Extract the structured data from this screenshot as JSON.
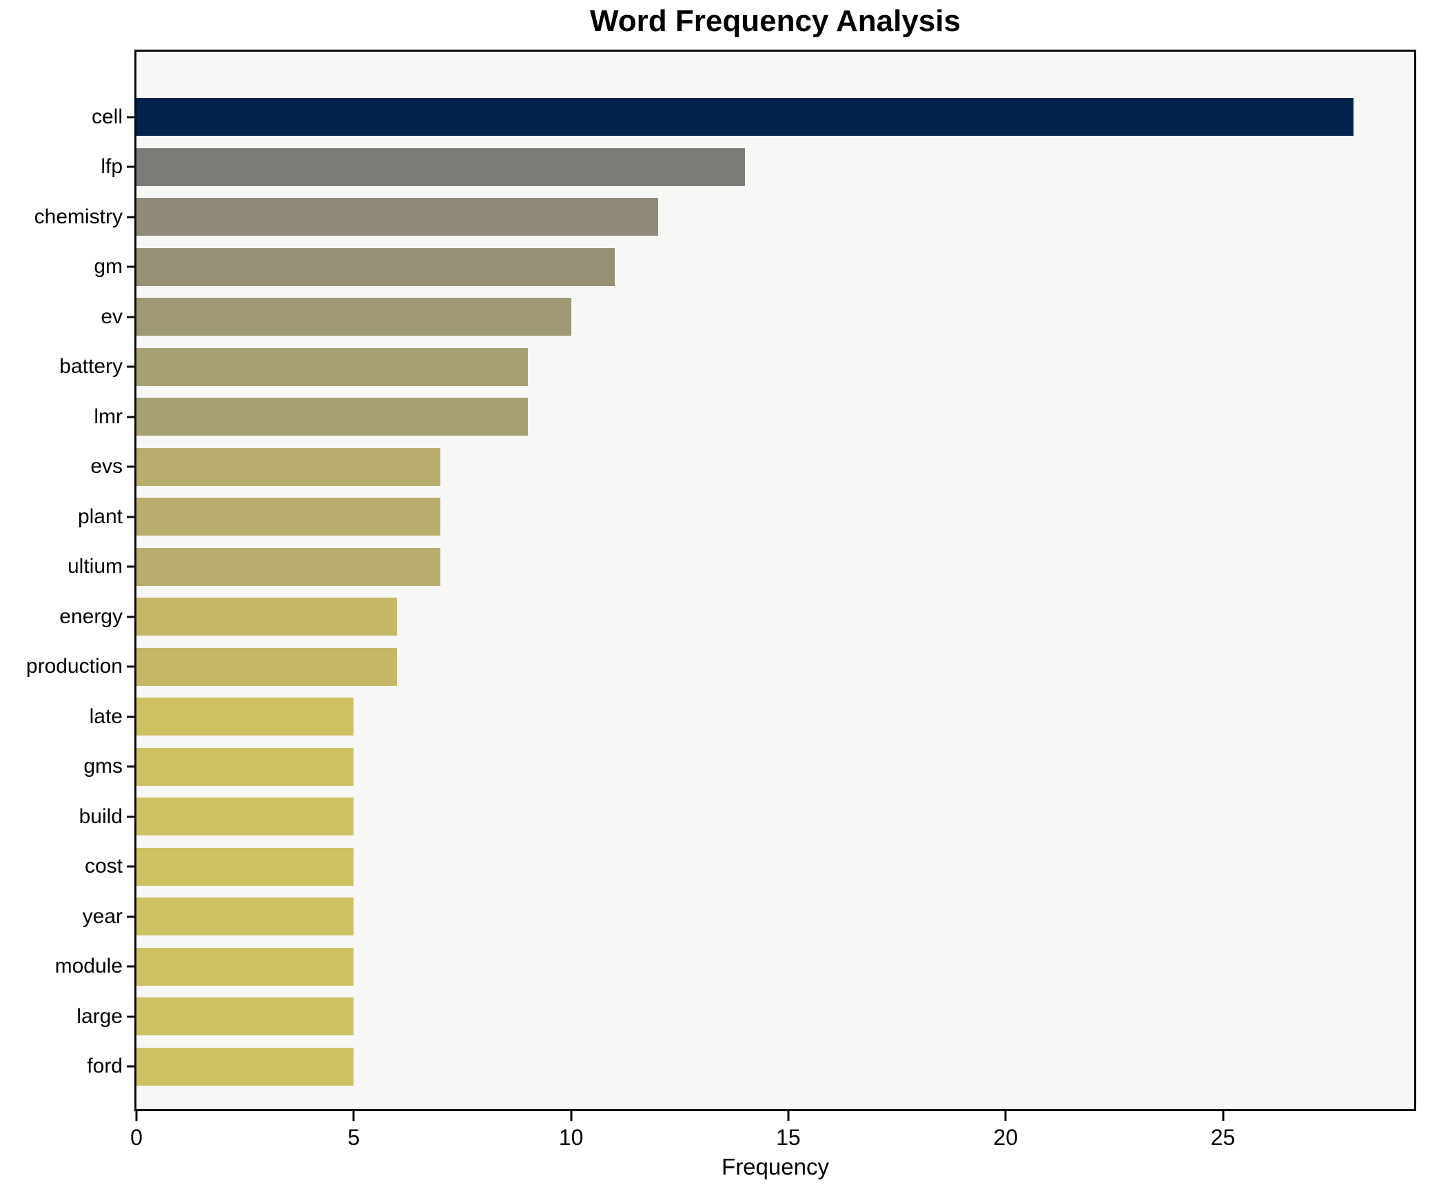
{
  "title": "Word Frequency Analysis",
  "chart_data": {
    "type": "bar",
    "orientation": "horizontal",
    "title": "Word Frequency Analysis",
    "xlabel": "Frequency",
    "ylabel": "",
    "categories": [
      "cell",
      "lfp",
      "chemistry",
      "gm",
      "ev",
      "battery",
      "lmr",
      "evs",
      "plant",
      "ultium",
      "energy",
      "production",
      "late",
      "gms",
      "build",
      "cost",
      "year",
      "module",
      "large",
      "ford"
    ],
    "values": [
      28,
      14,
      12,
      11,
      10,
      9,
      9,
      7,
      7,
      7,
      6,
      6,
      5,
      5,
      5,
      5,
      5,
      5,
      5,
      5
    ],
    "bar_colors": [
      "#03224c",
      "#7b7b77",
      "#8f8a7a",
      "#969174",
      "#9e9974",
      "#a7a073",
      "#a7a073",
      "#b9ad6d",
      "#b9ad6d",
      "#b9ad6d",
      "#c6b766",
      "#c6b766",
      "#cdc162",
      "#cdc162",
      "#cdc162",
      "#cdc162",
      "#cdc162",
      "#cdc162",
      "#cdc162",
      "#cdc162"
    ],
    "xlim": [
      0,
      29.4
    ],
    "x_ticks": [
      0,
      5,
      10,
      15,
      20,
      25
    ],
    "grid": false,
    "legend": "none",
    "plot_background": "#f7f7f5",
    "figure_background": "#ffffff",
    "spine_color": "#0a0a0a",
    "text_color": "#000000"
  }
}
